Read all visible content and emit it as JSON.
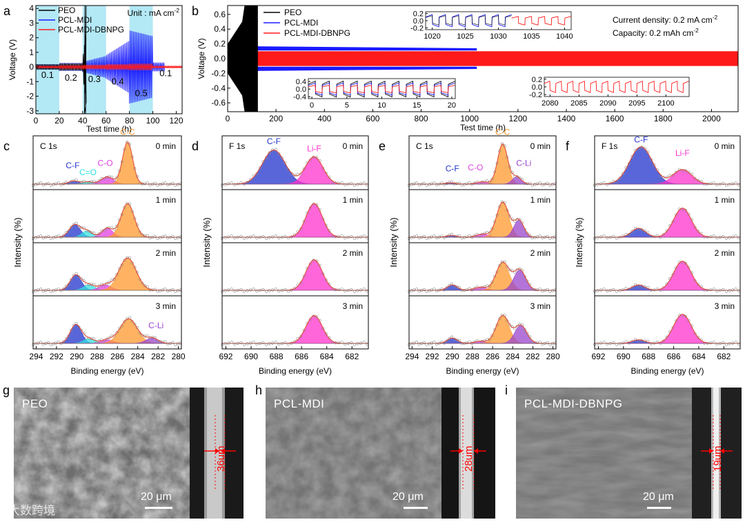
{
  "colors": {
    "peo": "#000000",
    "pcl_mdi": "#1a1aff",
    "dbnpg": "#ff1a1a",
    "band": "#b3e8f5",
    "cf": "#2233cc",
    "cc": "#ff9a2e",
    "co": "#e040e0",
    "ceo": "#33e0e0",
    "cli": "#9944cc",
    "lif": "#ff33cc",
    "fit": "#e0503a"
  },
  "chart_data": [
    {
      "id": "a",
      "type": "line",
      "xlabel": "Test time (h)",
      "ylabel": "Voltage (V)",
      "xlim": [
        0,
        125
      ],
      "ylim": [
        -3.2,
        4.2
      ],
      "xticks": [
        0,
        20,
        40,
        60,
        80,
        100,
        120
      ],
      "yticks": [
        -3,
        -2,
        -1,
        0,
        1,
        2,
        3,
        4
      ],
      "unit_note": "Unit : mA cm",
      "unit_sup": "-2",
      "bands": [
        [
          0,
          20
        ],
        [
          40,
          60
        ],
        [
          80,
          100
        ]
      ],
      "rate_labels": [
        {
          "text": "0.1",
          "x": 10,
          "y": -0.55
        },
        {
          "text": "0.2",
          "x": 30,
          "y": -0.75
        },
        {
          "text": "0.3",
          "x": 50,
          "y": -0.85
        },
        {
          "text": "0.4",
          "x": 70,
          "y": -1.0
        },
        {
          "text": "0.5",
          "x": 90,
          "y": -1.8
        },
        {
          "text": "0.1",
          "x": 111,
          "y": -0.45
        }
      ],
      "series": [
        {
          "name": "PEO",
          "end_h": 43
        },
        {
          "name": "PCL-MDI",
          "end_h": 110
        },
        {
          "name": "PCL-MDI-DBNPG",
          "end_h": 125
        }
      ],
      "legend": [
        "PEO",
        "PCL-MDI",
        "PCL-MDI-DBNPG"
      ]
    },
    {
      "id": "b",
      "type": "line",
      "xlabel": "Test time (h)",
      "ylabel": "Voltage (V)",
      "xlim": [
        0,
        2110
      ],
      "ylim": [
        -0.72,
        0.72
      ],
      "xticks": [
        0,
        200,
        400,
        600,
        800,
        1000,
        1200,
        1400,
        1600,
        1800,
        2000
      ],
      "yticks": [
        -0.6,
        -0.4,
        -0.2,
        0.0,
        0.2,
        0.4,
        0.6
      ],
      "yticklabels": [
        "-0.6",
        "-0.4",
        "-0.2",
        "0.0",
        "0.2",
        "0.4",
        "0.6"
      ],
      "legend": [
        "PEO",
        "PCL-MDI",
        "PCL-MDI-DBNPG"
      ],
      "note1": "Current density: 0.2 mA cm",
      "note1_sup": "-2",
      "note2": "Capacity: 0.2 mAh cm",
      "note2_sup": "-2",
      "series": [
        {
          "name": "PEO",
          "end_h": 125,
          "amp": 0.7
        },
        {
          "name": "PCL-MDI",
          "end_h": 1030,
          "amp": 0.15
        },
        {
          "name": "PCL-MDI-DBNPG",
          "end_h": 2110,
          "amp": 0.1
        }
      ],
      "insets": [
        {
          "name": "inset-1020",
          "xlim": [
            1019,
            1041
          ],
          "xticks": [
            1020,
            1025,
            1030,
            1035,
            1040
          ],
          "ylim": [
            -0.25,
            0.25
          ],
          "yticks": [
            -0.2,
            0.0,
            0.2
          ],
          "yticklabels": [
            "-0.2",
            "0.0",
            "0.2"
          ],
          "series": [
            "PEO",
            "PCL-MDI",
            "PCL-MDI-DBNPG"
          ],
          "blue_end": 1032
        },
        {
          "name": "inset-0",
          "xlim": [
            -0.5,
            20.5
          ],
          "xticks": [
            0,
            5,
            10,
            15,
            20
          ],
          "ylim": [
            -0.5,
            0.55
          ],
          "yticks": [
            -0.4,
            0.0,
            0.4
          ],
          "yticklabels": [
            "-0.4",
            "0.0",
            "0.4"
          ],
          "series": [
            "PEO",
            "PCL-MDI",
            "PCL-MDI-DBNPG"
          ]
        },
        {
          "name": "inset-2080",
          "xlim": [
            2079,
            2104
          ],
          "xticks": [
            2080,
            2085,
            2090,
            2095,
            2100
          ],
          "ylim": [
            -0.25,
            0.25
          ],
          "yticks": [
            -0.2,
            0.0,
            0.2
          ],
          "yticklabels": [
            "-0.2",
            "0.0",
            "0.2"
          ],
          "series": [
            "PCL-MDI-DBNPG"
          ]
        }
      ]
    },
    {
      "id": "c",
      "type": "xps",
      "core": "C 1s",
      "xlabel": "Binding energy (eV)",
      "ylabel": "Intensity (%)",
      "xlim": [
        294.3,
        279.7
      ],
      "xticks": [
        294,
        292,
        290,
        288,
        286,
        284,
        282,
        280
      ],
      "etch_times": [
        "0 min",
        "1 min",
        "2 min",
        "3 min"
      ],
      "peak_labels": [
        {
          "text": "C-C",
          "color": "cc",
          "x": 285.0,
          "h": 1.08
        },
        {
          "text": "C-F",
          "color": "cf",
          "x": 290.4,
          "h": 0.35
        },
        {
          "text": "C=O",
          "color": "ceo",
          "x": 288.9,
          "h": 0.2
        },
        {
          "text": "C-O",
          "color": "co",
          "x": 287.2,
          "h": 0.4
        },
        {
          "text": "C-Li",
          "color": "cli",
          "x": 282.2,
          "h": 0.34,
          "row": 3
        }
      ],
      "rows": [
        {
          "peaks": [
            {
              "c": 290.3,
              "w": 0.5,
              "h": 0.07,
              "col": "cf"
            },
            {
              "c": 288.9,
              "w": 0.5,
              "h": 0.05,
              "col": "ceo"
            },
            {
              "c": 287.0,
              "w": 0.6,
              "h": 0.16,
              "col": "co"
            },
            {
              "c": 285.0,
              "w": 0.5,
              "h": 0.92,
              "col": "cc"
            }
          ]
        },
        {
          "peaks": [
            {
              "c": 290.2,
              "w": 0.55,
              "h": 0.28,
              "col": "cf"
            },
            {
              "c": 289.0,
              "w": 0.5,
              "h": 0.14,
              "col": "ceo"
            },
            {
              "c": 287.0,
              "w": 0.55,
              "h": 0.2,
              "col": "co"
            },
            {
              "c": 285.0,
              "w": 0.65,
              "h": 0.75,
              "col": "cc"
            }
          ]
        },
        {
          "peaks": [
            {
              "c": 290.1,
              "w": 0.55,
              "h": 0.34,
              "col": "cf"
            },
            {
              "c": 288.8,
              "w": 0.55,
              "h": 0.12,
              "col": "ceo"
            },
            {
              "c": 287.2,
              "w": 0.6,
              "h": 0.12,
              "col": "co"
            },
            {
              "c": 285.0,
              "w": 0.85,
              "h": 0.72,
              "col": "cc"
            }
          ]
        },
        {
          "peaks": [
            {
              "c": 290.1,
              "w": 0.55,
              "h": 0.42,
              "col": "cf"
            },
            {
              "c": 288.8,
              "w": 0.55,
              "h": 0.1,
              "col": "ceo"
            },
            {
              "c": 287.0,
              "w": 0.6,
              "h": 0.08,
              "col": "co"
            },
            {
              "c": 284.9,
              "w": 0.85,
              "h": 0.55,
              "col": "cc"
            },
            {
              "c": 282.6,
              "w": 0.6,
              "h": 0.12,
              "col": "cli"
            }
          ]
        }
      ]
    },
    {
      "id": "d",
      "type": "xps",
      "core": "F 1s",
      "xlabel": "Binding energy (eV)",
      "ylabel": "Intensity (%)",
      "xlim": [
        692.3,
        680.7
      ],
      "xticks": [
        692,
        690,
        688,
        686,
        684,
        682
      ],
      "etch_times": [
        "0 min",
        "1 min",
        "2 min",
        "3 min"
      ],
      "peak_labels": [
        {
          "text": "C-F",
          "color": "cf",
          "x": 688.2,
          "h": 0.88
        },
        {
          "text": "Li-F",
          "color": "lif",
          "x": 685.0,
          "h": 0.72
        }
      ],
      "rows": [
        {
          "peaks": [
            {
              "c": 688.2,
              "w": 0.9,
              "h": 0.75,
              "col": "cf"
            },
            {
              "c": 685.0,
              "w": 0.7,
              "h": 0.6,
              "col": "lif"
            }
          ]
        },
        {
          "peaks": [
            {
              "c": 685.0,
              "w": 0.65,
              "h": 0.75,
              "col": "lif"
            }
          ]
        },
        {
          "peaks": [
            {
              "c": 685.0,
              "w": 0.65,
              "h": 0.68,
              "col": "lif"
            }
          ]
        },
        {
          "peaks": [
            {
              "c": 685.0,
              "w": 0.65,
              "h": 0.62,
              "col": "lif"
            }
          ]
        }
      ]
    },
    {
      "id": "e",
      "type": "xps",
      "core": "C 1s",
      "xlabel": "Binding energy (eV)",
      "ylabel": "Intensity (%)",
      "xlim": [
        294.3,
        279.7
      ],
      "xticks": [
        294,
        292,
        290,
        288,
        286,
        284,
        282,
        280
      ],
      "etch_times": [
        "0 min",
        "1 min",
        "2 min",
        "3 min"
      ],
      "peak_labels": [
        {
          "text": "C-C",
          "color": "cc",
          "x": 285.0,
          "h": 1.08
        },
        {
          "text": "C-F",
          "color": "cf",
          "x": 290.0,
          "h": 0.28
        },
        {
          "text": "C-O",
          "color": "co",
          "x": 287.7,
          "h": 0.3
        },
        {
          "text": "C-Li",
          "color": "cli",
          "x": 282.9,
          "h": 0.4
        }
      ],
      "rows": [
        {
          "peaks": [
            {
              "c": 290.2,
              "w": 0.5,
              "h": 0.03,
              "col": "cf"
            },
            {
              "c": 287.0,
              "w": 0.6,
              "h": 0.05,
              "col": "co"
            },
            {
              "c": 285.0,
              "w": 0.5,
              "h": 0.88,
              "col": "cc"
            },
            {
              "c": 283.6,
              "w": 0.45,
              "h": 0.16,
              "col": "cli"
            }
          ]
        },
        {
          "peaks": [
            {
              "c": 290.1,
              "w": 0.5,
              "h": 0.04,
              "col": "cf"
            },
            {
              "c": 287.0,
              "w": 0.6,
              "h": 0.07,
              "col": "co"
            },
            {
              "c": 285.0,
              "w": 0.6,
              "h": 0.78,
              "col": "cc"
            },
            {
              "c": 283.4,
              "w": 0.5,
              "h": 0.38,
              "col": "cli"
            }
          ]
        },
        {
          "peaks": [
            {
              "c": 290.0,
              "w": 0.5,
              "h": 0.12,
              "col": "cf"
            },
            {
              "c": 287.2,
              "w": 0.6,
              "h": 0.07,
              "col": "co"
            },
            {
              "c": 285.0,
              "w": 0.65,
              "h": 0.62,
              "col": "cc"
            },
            {
              "c": 283.3,
              "w": 0.6,
              "h": 0.45,
              "col": "cli"
            }
          ]
        },
        {
          "peaks": [
            {
              "c": 290.0,
              "w": 0.5,
              "h": 0.12,
              "col": "cf"
            },
            {
              "c": 287.2,
              "w": 0.6,
              "h": 0.05,
              "col": "co"
            },
            {
              "c": 285.0,
              "w": 0.65,
              "h": 0.62,
              "col": "cc"
            },
            {
              "c": 283.2,
              "w": 0.6,
              "h": 0.4,
              "col": "cli"
            }
          ]
        }
      ]
    },
    {
      "id": "f",
      "type": "xps",
      "core": "F 1s",
      "xlabel": "Binding energy (eV)",
      "ylabel": "Intensity (%)",
      "xlim": [
        692.3,
        680.7
      ],
      "xticks": [
        692,
        690,
        688,
        686,
        684,
        682
      ],
      "etch_times": [
        "0 min",
        "1 min",
        "2 min",
        "3 min"
      ],
      "peak_labels": [
        {
          "text": "C-F",
          "color": "cf",
          "x": 688.6,
          "h": 0.92
        },
        {
          "text": "Li-F",
          "color": "lif",
          "x": 685.3,
          "h": 0.62
        }
      ],
      "rows": [
        {
          "peaks": [
            {
              "c": 688.6,
              "w": 0.9,
              "h": 0.82,
              "col": "cf"
            },
            {
              "c": 685.3,
              "w": 0.75,
              "h": 0.32,
              "col": "lif"
            }
          ]
        },
        {
          "peaks": [
            {
              "c": 688.8,
              "w": 0.55,
              "h": 0.2,
              "col": "cf"
            },
            {
              "c": 685.3,
              "w": 0.7,
              "h": 0.65,
              "col": "lif"
            }
          ]
        },
        {
          "peaks": [
            {
              "c": 688.8,
              "w": 0.5,
              "h": 0.12,
              "col": "cf"
            },
            {
              "c": 685.3,
              "w": 0.7,
              "h": 0.65,
              "col": "lif"
            }
          ]
        },
        {
          "peaks": [
            {
              "c": 688.8,
              "w": 0.5,
              "h": 0.08,
              "col": "cf"
            },
            {
              "c": 685.3,
              "w": 0.7,
              "h": 0.65,
              "col": "lif"
            }
          ]
        }
      ]
    }
  ],
  "panel_labels": [
    "a",
    "b",
    "c",
    "d",
    "e",
    "f",
    "g",
    "h",
    "i"
  ],
  "sem": [
    {
      "id": "g",
      "label": "PEO",
      "thickness": "36um",
      "scale": "20 μm"
    },
    {
      "id": "h",
      "label": "PCL-MDI",
      "thickness": "28um",
      "scale": "20 μm"
    },
    {
      "id": "i",
      "label": "PCL-MDI-DBNPG",
      "thickness": "19um",
      "scale": "20 μm"
    }
  ],
  "watermark": "大数跨境"
}
